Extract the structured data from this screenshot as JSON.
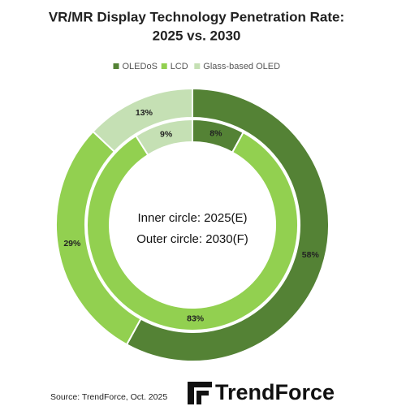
{
  "chart_data": {
    "type": "donut",
    "title": [
      "VR/MR Display Technology Penetration Rate:",
      "2025 vs. 2030"
    ],
    "categories": [
      "OLEDoS",
      "LCD",
      "Glass-based OLED"
    ],
    "colors": [
      "#548235",
      "#92d050",
      "#c5e0b4"
    ],
    "series": [
      {
        "values": [
          8,
          83,
          9
        ],
        "value_labels": [
          "8%",
          "83%",
          "9%"
        ]
      },
      {
        "values": [
          58,
          29,
          13
        ],
        "value_labels": [
          "58%",
          "29%",
          "13%"
        ]
      }
    ],
    "annotations": [
      "Inner circle: 2025(E)",
      "Outer circle: 2030(F)"
    ],
    "source": "Source: TrendForce, Oct. 2025",
    "logo": "TrendForce"
  }
}
